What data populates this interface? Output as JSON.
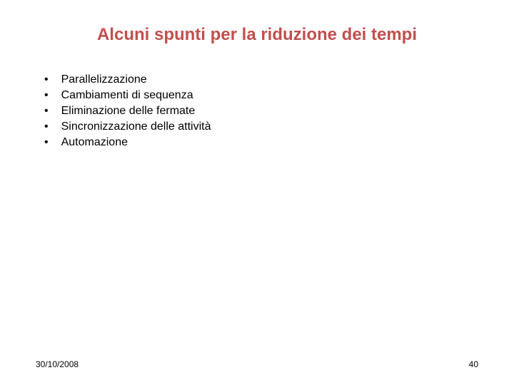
{
  "slide": {
    "title": "Alcuni spunti per la riduzione dei tempi",
    "title_color": "#c0504d",
    "title_fontsize": 24,
    "bullets": [
      "Parallelizzazione",
      "Cambiamenti di sequenza",
      "Eliminazione delle fermate",
      "Sincronizzazione delle attività",
      "Automazione"
    ],
    "bullet_marker": "•",
    "bullet_fontsize": 16,
    "bullet_color": "#000000",
    "background_color": "#ffffff"
  },
  "footer": {
    "date": "30/10/2008",
    "page_number": "40",
    "fontsize": 12,
    "color": "#000000"
  }
}
